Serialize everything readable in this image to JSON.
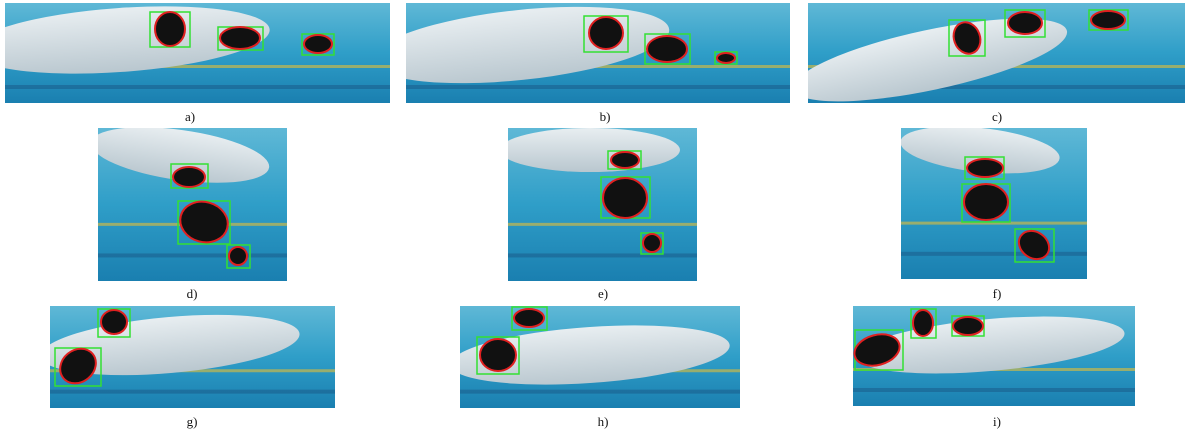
{
  "panels": [
    {
      "label": "a)"
    },
    {
      "label": "b)"
    },
    {
      "label": "c)"
    },
    {
      "label": "d)"
    },
    {
      "label": "e)"
    },
    {
      "label": "f)"
    },
    {
      "label": "g)"
    },
    {
      "label": "h)"
    },
    {
      "label": "i)"
    }
  ]
}
